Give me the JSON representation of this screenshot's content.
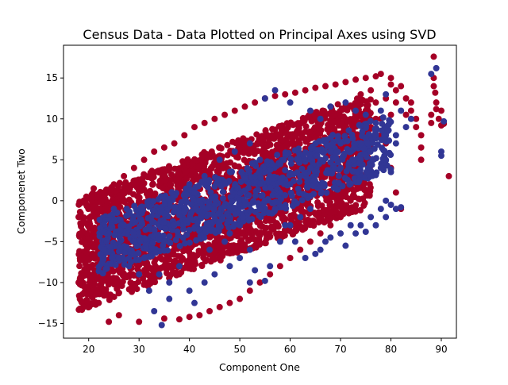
{
  "chart_data": {
    "type": "scatter",
    "title": "Census Data - Data Plotted on Principal Axes using SVD",
    "xlabel": "Component One",
    "ylabel": "Componenet Two",
    "xlim": [
      15,
      93
    ],
    "ylim": [
      -16.8,
      19
    ],
    "xticks": [
      20,
      30,
      40,
      50,
      60,
      70,
      80,
      90
    ],
    "yticks": [
      -15,
      -10,
      -5,
      0,
      5,
      10,
      15
    ],
    "grid": false,
    "legend": "none",
    "colors": {
      "class_a": "#a50026",
      "class_b": "#313695"
    },
    "series": [
      {
        "color_key": "class_a",
        "band": {
          "x_min": 18,
          "x_max": 76,
          "y_low_at_18": -13.5,
          "y_high_at_18": 0.5,
          "slope": 0.22,
          "width": 14,
          "count": 2600
        },
        "points": [
          [
            80,
            15
          ],
          [
            80,
            14.2
          ],
          [
            81,
            13.5
          ],
          [
            82,
            14
          ],
          [
            83,
            12.5
          ],
          [
            84,
            11
          ],
          [
            85,
            10
          ],
          [
            86,
            6.5
          ],
          [
            86,
            5
          ],
          [
            88,
            9.5
          ],
          [
            88,
            10.5
          ],
          [
            88.5,
            14
          ],
          [
            88.5,
            15
          ],
          [
            89,
            12
          ],
          [
            89,
            11.2
          ],
          [
            89.5,
            10
          ],
          [
            90,
            9.2
          ],
          [
            90,
            11
          ],
          [
            91.5,
            3
          ],
          [
            90.5,
            9.4
          ],
          [
            88.5,
            17.6
          ],
          [
            88.8,
            13.2
          ],
          [
            77,
            12
          ],
          [
            79,
            7
          ],
          [
            80,
            4
          ],
          [
            81,
            1
          ],
          [
            82,
            -1
          ],
          [
            80,
            10.5
          ],
          [
            78,
            10
          ],
          [
            76,
            9
          ],
          [
            75,
            6
          ],
          [
            74,
            2
          ],
          [
            72,
            0
          ],
          [
            70,
            -2
          ],
          [
            68,
            -3
          ],
          [
            66,
            -4
          ],
          [
            64,
            -5
          ],
          [
            62,
            -6
          ],
          [
            60,
            -7
          ],
          [
            58,
            -8
          ],
          [
            56,
            -9
          ],
          [
            54,
            -10
          ],
          [
            52,
            -11
          ],
          [
            50,
            -12
          ],
          [
            48,
            -12.5
          ],
          [
            46,
            -13
          ],
          [
            44,
            -13.5
          ],
          [
            42,
            -14
          ],
          [
            40,
            -14.2
          ],
          [
            38,
            -14.5
          ],
          [
            30,
            -14.8
          ],
          [
            24,
            -14.8
          ],
          [
            26,
            -14
          ],
          [
            35,
            -14.4
          ],
          [
            22,
            -12.5
          ],
          [
            19,
            -13
          ],
          [
            20,
            -11
          ],
          [
            18,
            -10
          ],
          [
            18,
            -2
          ],
          [
            19,
            0
          ],
          [
            21,
            1.5
          ],
          [
            23,
            1
          ],
          [
            25,
            2
          ],
          [
            27,
            3
          ],
          [
            29,
            4
          ],
          [
            31,
            5
          ],
          [
            33,
            6
          ],
          [
            35,
            6.5
          ],
          [
            37,
            7
          ],
          [
            39,
            8
          ],
          [
            41,
            9
          ],
          [
            43,
            9.5
          ],
          [
            45,
            10
          ],
          [
            47,
            10.5
          ],
          [
            49,
            11
          ],
          [
            51,
            11.5
          ],
          [
            53,
            12
          ],
          [
            55,
            12.5
          ],
          [
            57,
            12.8
          ],
          [
            59,
            13
          ],
          [
            61,
            13.2
          ],
          [
            63,
            13.5
          ],
          [
            65,
            13.8
          ],
          [
            67,
            14
          ],
          [
            69,
            14.2
          ],
          [
            71,
            14.5
          ],
          [
            73,
            14.8
          ],
          [
            75,
            15
          ],
          [
            77,
            15.2
          ],
          [
            78,
            15.5
          ],
          [
            74,
            13
          ],
          [
            72,
            11.5
          ],
          [
            76,
            13.5
          ],
          [
            79,
            12.5
          ],
          [
            81,
            12
          ],
          [
            83,
            10.5
          ],
          [
            84,
            12
          ],
          [
            85,
            9
          ],
          [
            86,
            8
          ],
          [
            75,
            11
          ],
          [
            77,
            10
          ],
          [
            79,
            9
          ],
          [
            78,
            8
          ],
          [
            76,
            7
          ],
          [
            74,
            5
          ],
          [
            73,
            3
          ],
          [
            71,
            1
          ],
          [
            69,
            -1
          ]
        ]
      },
      {
        "color_key": "class_b",
        "band": {
          "x_min": 22,
          "x_max": 80,
          "y_low_at_18": -10,
          "y_high_at_18": -3,
          "slope": 0.22,
          "width": 9,
          "count": 900
        },
        "points": [
          [
            34.5,
            -15.2
          ],
          [
            33,
            -13.5
          ],
          [
            41,
            -12.5
          ],
          [
            36,
            -12
          ],
          [
            52,
            -10
          ],
          [
            55,
            -9.8
          ],
          [
            53,
            -8.5
          ],
          [
            56,
            -8
          ],
          [
            63,
            -7
          ],
          [
            65,
            -6.5
          ],
          [
            66,
            -6
          ],
          [
            67,
            -5
          ],
          [
            68,
            -4.5
          ],
          [
            70,
            -4
          ],
          [
            71,
            -5.5
          ],
          [
            73,
            -4
          ],
          [
            74,
            -3
          ],
          [
            76,
            -2
          ],
          [
            78,
            -1
          ],
          [
            79,
            0
          ],
          [
            80,
            -0.5
          ],
          [
            81,
            -1
          ],
          [
            82,
            -0.8
          ],
          [
            79,
            -2
          ],
          [
            77,
            -3
          ],
          [
            75,
            -3.8
          ],
          [
            72,
            -3
          ],
          [
            58,
            -5
          ],
          [
            60,
            -3
          ],
          [
            62,
            -2
          ],
          [
            64,
            -1
          ],
          [
            44,
            -6
          ],
          [
            47,
            -5
          ],
          [
            50,
            -3
          ],
          [
            55,
            0
          ],
          [
            58,
            1
          ],
          [
            60,
            2
          ],
          [
            62,
            3
          ],
          [
            64,
            4
          ],
          [
            66,
            5
          ],
          [
            68,
            6
          ],
          [
            70,
            7
          ],
          [
            72,
            6
          ],
          [
            74,
            5
          ],
          [
            76,
            3
          ],
          [
            78,
            4
          ],
          [
            80,
            3.5
          ],
          [
            79,
            5
          ],
          [
            81,
            8
          ],
          [
            83,
            9
          ],
          [
            84,
            10
          ],
          [
            82,
            11
          ],
          [
            81,
            7
          ],
          [
            78,
            11
          ],
          [
            79,
            13
          ],
          [
            55,
            12.5
          ],
          [
            57,
            13.5
          ],
          [
            60,
            12
          ],
          [
            64,
            11
          ],
          [
            66,
            10
          ],
          [
            68,
            11.5
          ],
          [
            71,
            12
          ],
          [
            73,
            11
          ],
          [
            75,
            10.5
          ],
          [
            77,
            9.5
          ],
          [
            89,
            16.2
          ],
          [
            90,
            6
          ],
          [
            90,
            5.5
          ],
          [
            90.5,
            9.7
          ],
          [
            88,
            15.5
          ],
          [
            40,
            2
          ],
          [
            42,
            0
          ],
          [
            45,
            -2
          ],
          [
            48,
            -4
          ],
          [
            38,
            -8
          ],
          [
            36,
            -10
          ],
          [
            32,
            -11
          ],
          [
            30,
            -9
          ],
          [
            28,
            -8
          ],
          [
            26,
            -7
          ],
          [
            35,
            -5
          ],
          [
            37,
            -3
          ],
          [
            39,
            -1
          ],
          [
            41,
            1
          ],
          [
            43,
            3
          ],
          [
            46,
            5
          ],
          [
            49,
            6
          ],
          [
            52,
            7
          ],
          [
            54,
            5
          ],
          [
            56,
            3
          ],
          [
            57,
            -1
          ],
          [
            59,
            -3
          ],
          [
            61,
            -5
          ],
          [
            52,
            -6
          ],
          [
            50,
            -7
          ],
          [
            48,
            -8
          ],
          [
            45,
            -9
          ],
          [
            43,
            -10
          ],
          [
            40,
            -11
          ],
          [
            34,
            -9
          ],
          [
            31,
            -7
          ],
          [
            29,
            -5
          ],
          [
            27,
            -3
          ],
          [
            25,
            -1
          ],
          [
            24,
            -4
          ],
          [
            23,
            -6
          ]
        ]
      }
    ]
  }
}
